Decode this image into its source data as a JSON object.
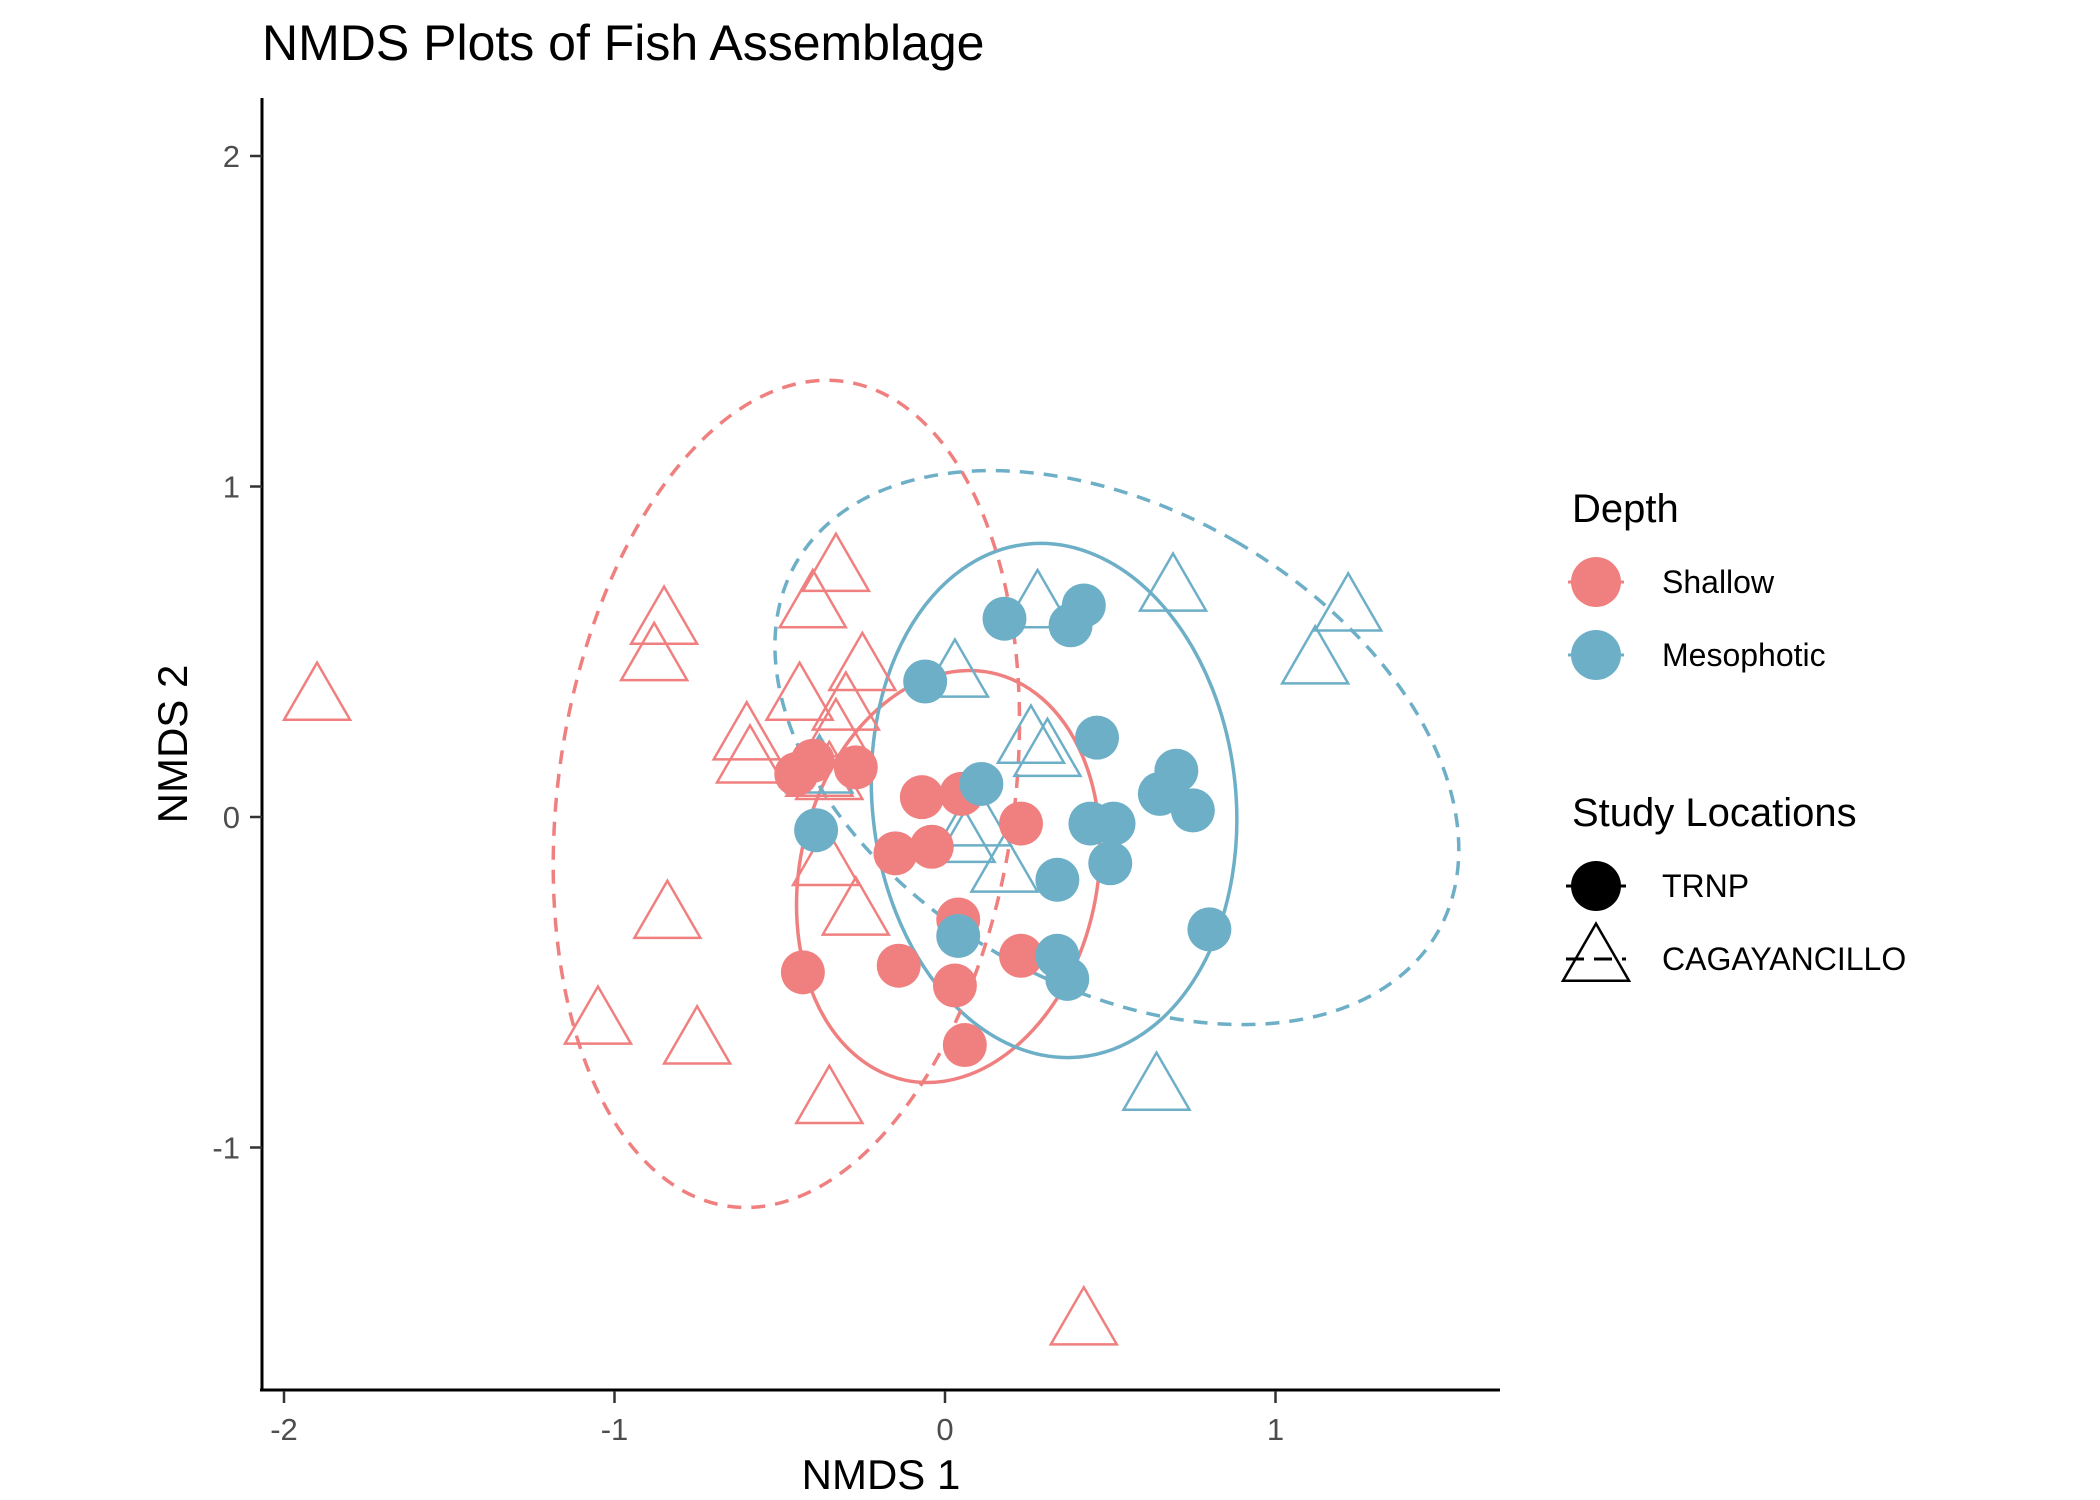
{
  "chart_data": {
    "type": "scatter",
    "title": "NMDS Plots of Fish Assemblage",
    "xlabel": "NMDS 1",
    "ylabel": "NMDS 2",
    "xlim": [
      -2.07,
      1.67
    ],
    "ylim": [
      -1.74,
      2.17
    ],
    "x_ticks": [
      -2,
      -1,
      0,
      1
    ],
    "x_tick_labels": [
      "-2",
      "-1",
      "0",
      "1"
    ],
    "y_ticks": [
      -1,
      0,
      1,
      2
    ],
    "y_tick_labels": [
      "-1",
      "0",
      "1",
      "2"
    ],
    "grid": false,
    "legend": {
      "placement": "right",
      "color_title": "Depth",
      "shape_title": "Study Locations",
      "color_entries": [
        {
          "label": "Shallow",
          "color": "#F08080"
        },
        {
          "label": "Mesophotic",
          "color": "#6EAFC8"
        }
      ],
      "shape_entries": [
        {
          "label": "TRNP",
          "shape": "filled-circle",
          "linetype": "solid"
        },
        {
          "label": "CAGAYANCILLO",
          "shape": "open-triangle",
          "linetype": "dashed"
        }
      ]
    },
    "series": [
      {
        "name": "Shallow",
        "location": "TRNP",
        "color": "#F08080",
        "shape": "filled-circle",
        "points": [
          [
            -0.45,
            0.13
          ],
          [
            -0.4,
            0.17
          ],
          [
            -0.27,
            0.15
          ],
          [
            -0.07,
            0.06
          ],
          [
            0.05,
            0.07
          ],
          [
            -0.15,
            -0.11
          ],
          [
            -0.04,
            -0.09
          ],
          [
            0.23,
            -0.02
          ],
          [
            0.04,
            -0.31
          ],
          [
            -0.43,
            -0.47
          ],
          [
            -0.14,
            -0.45
          ],
          [
            0.03,
            -0.51
          ],
          [
            0.23,
            -0.42
          ],
          [
            0.06,
            -0.69
          ]
        ]
      },
      {
        "name": "Mesophotic",
        "location": "TRNP",
        "color": "#6EAFC8",
        "shape": "filled-circle",
        "points": [
          [
            0.18,
            0.6
          ],
          [
            0.42,
            0.64
          ],
          [
            0.38,
            0.58
          ],
          [
            -0.06,
            0.41
          ],
          [
            0.46,
            0.24
          ],
          [
            0.11,
            0.1
          ],
          [
            0.7,
            0.14
          ],
          [
            0.65,
            0.07
          ],
          [
            0.75,
            0.02
          ],
          [
            0.44,
            -0.02
          ],
          [
            0.51,
            -0.02
          ],
          [
            -0.39,
            -0.04
          ],
          [
            0.5,
            -0.14
          ],
          [
            0.34,
            -0.19
          ],
          [
            0.04,
            -0.36
          ],
          [
            0.34,
            -0.42
          ],
          [
            0.37,
            -0.49
          ],
          [
            0.8,
            -0.34
          ]
        ]
      },
      {
        "name": "Shallow",
        "location": "CAGAYANCILLO",
        "color": "#F08080",
        "shape": "open-triangle",
        "points": [
          [
            -1.9,
            0.36
          ],
          [
            -0.85,
            0.59
          ],
          [
            -0.88,
            0.48
          ],
          [
            -0.33,
            0.75
          ],
          [
            -0.4,
            0.64
          ],
          [
            -0.25,
            0.45
          ],
          [
            -0.44,
            0.36
          ],
          [
            -0.3,
            0.33
          ],
          [
            -0.33,
            0.25
          ],
          [
            -0.6,
            0.24
          ],
          [
            -0.59,
            0.17
          ],
          [
            -0.38,
            0.13
          ],
          [
            -0.35,
            0.12
          ],
          [
            -0.36,
            -0.14
          ],
          [
            -0.27,
            -0.29
          ],
          [
            -0.84,
            -0.3
          ],
          [
            -1.05,
            -0.62
          ],
          [
            -0.75,
            -0.68
          ],
          [
            -0.35,
            -0.86
          ],
          [
            0.42,
            -1.53
          ]
        ]
      },
      {
        "name": "Mesophotic",
        "location": "CAGAYANCILLO",
        "color": "#6EAFC8",
        "shape": "open-triangle",
        "points": [
          [
            0.28,
            0.64
          ],
          [
            0.69,
            0.69
          ],
          [
            1.22,
            0.63
          ],
          [
            1.12,
            0.47
          ],
          [
            0.03,
            0.43
          ],
          [
            0.26,
            0.23
          ],
          [
            0.31,
            0.19
          ],
          [
            -0.38,
            0.14
          ],
          [
            0.1,
            -0.02
          ],
          [
            0.05,
            -0.07
          ],
          [
            0.18,
            -0.16
          ],
          [
            0.64,
            -0.82
          ]
        ]
      }
    ],
    "ellipses": [
      {
        "depth": "Shallow",
        "location": "TRNP",
        "linetype": "solid",
        "color": "#F08080",
        "center": [
          0.01,
          -0.18
        ],
        "semi_axes": [
          0.45,
          0.63
        ],
        "angle_deg": 12
      },
      {
        "depth": "Mesophotic",
        "location": "TRNP",
        "linetype": "solid",
        "color": "#6EAFC8",
        "center": [
          0.33,
          0.05
        ],
        "semi_axes": [
          0.55,
          0.78
        ],
        "angle_deg": -6
      },
      {
        "depth": "Shallow",
        "location": "CAGAYANCILLO",
        "linetype": "dashed",
        "color": "#F08080",
        "center": [
          -0.48,
          0.07
        ],
        "semi_axes": [
          0.69,
          1.26
        ],
        "angle_deg": 8
      },
      {
        "depth": "Mesophotic",
        "location": "CAGAYANCILLO",
        "linetype": "dashed",
        "color": "#6EAFC8",
        "center": [
          0.52,
          0.21
        ],
        "semi_axes": [
          0.72,
          1.12
        ],
        "angle_deg": -60
      }
    ]
  }
}
